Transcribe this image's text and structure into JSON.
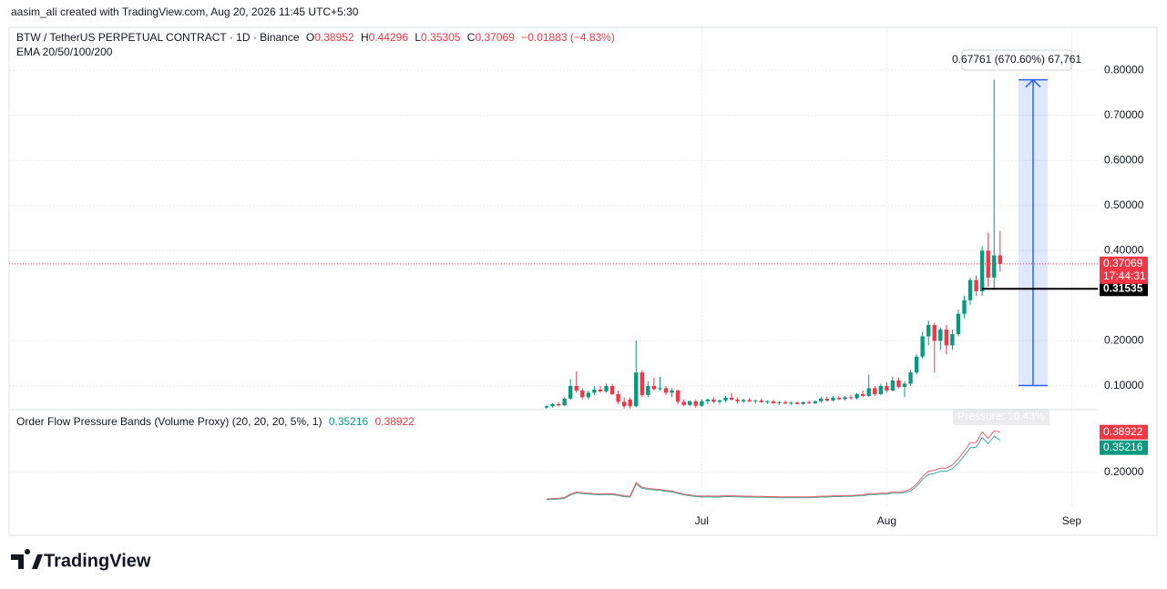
{
  "header": {
    "author_line": "aasim_ali created with TradingView.com, Aug 20, 2026 11:45 UTC+5:30"
  },
  "branding": "TradingView",
  "chart_data": {
    "type": "candlestick",
    "symbol": "BTW / TetherUS PERPETUAL CONTRACT · 1D · Binance",
    "ohlc_prefixes": [
      "O",
      "H",
      "L",
      "C"
    ],
    "change": "−0.01883 (−4.83%)",
    "indicator_title": "EMA 20/50/100/200",
    "categories": [
      null,
      null,
      null,
      null,
      null,
      null,
      null,
      null,
      null,
      null,
      null,
      null,
      null,
      null,
      null,
      null,
      null,
      null,
      null,
      null,
      null,
      null,
      null,
      null,
      null,
      null,
      "Jul",
      null,
      null,
      null,
      null,
      null,
      null,
      null,
      null,
      null,
      null,
      null,
      null,
      null,
      null,
      null,
      null,
      null,
      null,
      null,
      null,
      null,
      null,
      null,
      null,
      null,
      null,
      null,
      null,
      null,
      null,
      "Aug",
      null,
      null,
      null,
      null,
      null,
      null,
      null,
      null,
      null,
      null,
      null,
      null,
      null,
      null,
      null,
      null,
      null,
      null,
      null,
      null,
      null,
      null,
      null,
      null,
      null,
      null,
      null,
      null,
      null,
      null,
      "Sep",
      null,
      null,
      null,
      null
    ],
    "open": [
      0.052,
      0.055,
      0.06,
      0.057,
      0.072,
      0.1,
      0.09,
      0.075,
      0.085,
      0.092,
      0.088,
      0.1,
      0.082,
      0.065,
      0.07,
      0.055,
      0.13,
      0.08,
      0.1,
      0.093,
      0.095,
      0.085,
      0.09,
      0.065,
      0.058,
      0.066,
      0.056,
      0.066,
      0.07,
      0.065,
      0.068,
      0.074,
      0.07,
      0.066,
      0.069,
      0.066,
      0.068,
      0.064,
      0.066,
      0.062,
      0.064,
      0.061,
      0.063,
      0.06,
      0.064,
      0.062,
      0.066,
      0.072,
      0.068,
      0.074,
      0.071,
      0.075,
      0.073,
      0.082,
      0.078,
      0.095,
      0.082,
      0.1,
      0.09,
      0.112,
      0.098,
      0.105,
      0.13,
      0.165,
      0.21,
      0.235,
      0.2,
      0.225,
      0.19,
      0.215,
      0.26,
      0.29,
      0.335,
      0.31,
      0.4,
      0.34,
      0.38952,
      null,
      null,
      null,
      null,
      null,
      null,
      null,
      null,
      null,
      null,
      null,
      null,
      null,
      null,
      null,
      null
    ],
    "high": [
      0.058,
      0.062,
      0.064,
      0.075,
      0.115,
      0.132,
      0.095,
      0.09,
      0.1,
      0.1,
      0.105,
      0.104,
      0.09,
      0.075,
      0.075,
      0.201,
      0.135,
      0.11,
      0.118,
      0.12,
      0.1,
      0.095,
      0.092,
      0.07,
      0.068,
      0.07,
      0.07,
      0.072,
      0.075,
      0.07,
      0.078,
      0.085,
      0.075,
      0.072,
      0.073,
      0.07,
      0.072,
      0.068,
      0.069,
      0.066,
      0.068,
      0.065,
      0.066,
      0.066,
      0.068,
      0.068,
      0.075,
      0.076,
      0.078,
      0.077,
      0.078,
      0.08,
      0.085,
      0.09,
      0.125,
      0.1,
      0.105,
      0.108,
      0.12,
      0.118,
      0.11,
      0.135,
      0.17,
      0.22,
      0.245,
      0.24,
      0.23,
      0.235,
      0.225,
      0.27,
      0.3,
      0.34,
      0.345,
      0.41,
      0.44,
      0.77865,
      0.44296,
      null,
      null,
      null,
      null,
      null,
      null,
      null,
      null,
      null,
      null,
      null,
      null,
      null,
      null,
      null,
      null
    ],
    "low": [
      0.05,
      0.052,
      0.055,
      0.056,
      0.07,
      0.085,
      0.07,
      0.07,
      0.08,
      0.085,
      0.085,
      0.08,
      0.06,
      0.05,
      0.05,
      0.053,
      0.075,
      0.075,
      0.09,
      0.09,
      0.08,
      0.075,
      0.06,
      0.055,
      0.055,
      0.052,
      0.054,
      0.06,
      0.062,
      0.06,
      0.064,
      0.068,
      0.062,
      0.062,
      0.064,
      0.061,
      0.063,
      0.06,
      0.06,
      0.058,
      0.06,
      0.058,
      0.059,
      0.058,
      0.06,
      0.06,
      0.063,
      0.065,
      0.066,
      0.068,
      0.068,
      0.07,
      0.07,
      0.075,
      0.076,
      0.078,
      0.08,
      0.085,
      0.088,
      0.095,
      0.075,
      0.1,
      0.125,
      0.16,
      0.19,
      0.13,
      0.18,
      0.17,
      0.18,
      0.21,
      0.25,
      0.28,
      0.3,
      0.3,
      0.32,
      0.31535,
      0.35305,
      null,
      null,
      null,
      null,
      null,
      null,
      null,
      null,
      null,
      null,
      null,
      null,
      null,
      null,
      null,
      null
    ],
    "close": [
      0.055,
      0.06,
      0.057,
      0.072,
      0.1,
      0.09,
      0.075,
      0.085,
      0.092,
      0.088,
      0.1,
      0.082,
      0.065,
      0.055,
      0.055,
      0.13,
      0.08,
      0.1,
      0.093,
      0.095,
      0.085,
      0.09,
      0.065,
      0.058,
      0.066,
      0.056,
      0.066,
      0.07,
      0.065,
      0.068,
      0.074,
      0.07,
      0.066,
      0.069,
      0.066,
      0.068,
      0.064,
      0.066,
      0.062,
      0.064,
      0.061,
      0.063,
      0.06,
      0.064,
      0.062,
      0.066,
      0.072,
      0.068,
      0.074,
      0.071,
      0.075,
      0.073,
      0.082,
      0.078,
      0.095,
      0.082,
      0.1,
      0.09,
      0.112,
      0.098,
      0.105,
      0.13,
      0.165,
      0.21,
      0.235,
      0.2,
      0.225,
      0.19,
      0.215,
      0.26,
      0.29,
      0.335,
      0.31,
      0.4,
      0.34,
      0.38952,
      0.37069,
      null,
      null,
      null,
      null,
      null,
      null,
      null,
      null,
      null,
      null,
      null,
      null,
      null,
      null,
      null,
      null
    ],
    "up_color": "#089981",
    "down_color": "#f23645",
    "ylim": [
      0.0475,
      0.895
    ],
    "yticks": [
      {
        "value": 0.1,
        "label": "0.10000"
      },
      {
        "value": 0.2,
        "label": "0.20000"
      },
      {
        "value": 0.4,
        "label": "0.40000"
      },
      {
        "value": 0.5,
        "label": "0.50000"
      },
      {
        "value": 0.6,
        "label": "0.60000"
      },
      {
        "value": 0.7,
        "label": "0.70000"
      },
      {
        "value": 0.8,
        "label": "0.80000"
      }
    ],
    "grid": true,
    "last_price_countdown": "17:44:31",
    "horizontal_line": 0.31535,
    "measure": {
      "from": 0.10104,
      "to": 0.77865,
      "label": "0.67761 (670.60%) 67,761"
    },
    "pane": {
      "type": "line",
      "title": "Order Flow Pressure Bands (Volume Proxy) (20, 20, 20, 5%, 1)",
      "pressure_label": "Pressure: 10.43%",
      "ylim": [
        0.041,
        0.495
      ],
      "yticks": [
        {
          "value": 0.2,
          "label": "0.20000"
        }
      ],
      "series": [
        {
          "color": "#089981",
          "values": [
            0.071,
            0.073,
            0.074,
            0.078,
            0.093,
            0.103,
            0.1,
            0.098,
            0.096,
            0.094,
            0.096,
            0.095,
            0.091,
            0.086,
            0.084,
            0.145,
            0.125,
            0.12,
            0.117,
            0.115,
            0.111,
            0.108,
            0.101,
            0.094,
            0.09,
            0.086,
            0.084,
            0.085,
            0.084,
            0.084,
            0.086,
            0.086,
            0.085,
            0.084,
            0.084,
            0.083,
            0.083,
            0.082,
            0.082,
            0.081,
            0.081,
            0.081,
            0.081,
            0.081,
            0.081,
            0.082,
            0.084,
            0.084,
            0.086,
            0.086,
            0.087,
            0.087,
            0.089,
            0.09,
            0.095,
            0.095,
            0.097,
            0.097,
            0.102,
            0.102,
            0.104,
            0.114,
            0.135,
            0.167,
            0.19,
            0.195,
            0.205,
            0.205,
            0.218,
            0.245,
            0.278,
            0.315,
            0.318,
            0.365,
            0.335,
            0.37,
            0.35216,
            null,
            null,
            null,
            null,
            null,
            null,
            null,
            null,
            null,
            null,
            null,
            null,
            null,
            null,
            null,
            null
          ]
        },
        {
          "color": "#f23645",
          "values": [
            0.075,
            0.077,
            0.078,
            0.082,
            0.098,
            0.108,
            0.105,
            0.102,
            0.1,
            0.098,
            0.1,
            0.099,
            0.095,
            0.09,
            0.088,
            0.152,
            0.13,
            0.125,
            0.122,
            0.12,
            0.115,
            0.112,
            0.105,
            0.098,
            0.094,
            0.09,
            0.088,
            0.089,
            0.088,
            0.088,
            0.09,
            0.09,
            0.089,
            0.088,
            0.088,
            0.087,
            0.087,
            0.086,
            0.086,
            0.085,
            0.085,
            0.085,
            0.085,
            0.085,
            0.085,
            0.086,
            0.088,
            0.088,
            0.09,
            0.09,
            0.091,
            0.091,
            0.093,
            0.094,
            0.1,
            0.1,
            0.102,
            0.102,
            0.108,
            0.108,
            0.11,
            0.122,
            0.145,
            0.18,
            0.205,
            0.21,
            0.22,
            0.22,
            0.235,
            0.265,
            0.3,
            0.34,
            0.34,
            0.39,
            0.36,
            0.395,
            0.38922,
            null,
            null,
            null,
            null,
            null,
            null,
            null,
            null,
            null,
            null,
            null,
            null,
            null,
            null,
            null,
            null
          ]
        }
      ]
    }
  }
}
